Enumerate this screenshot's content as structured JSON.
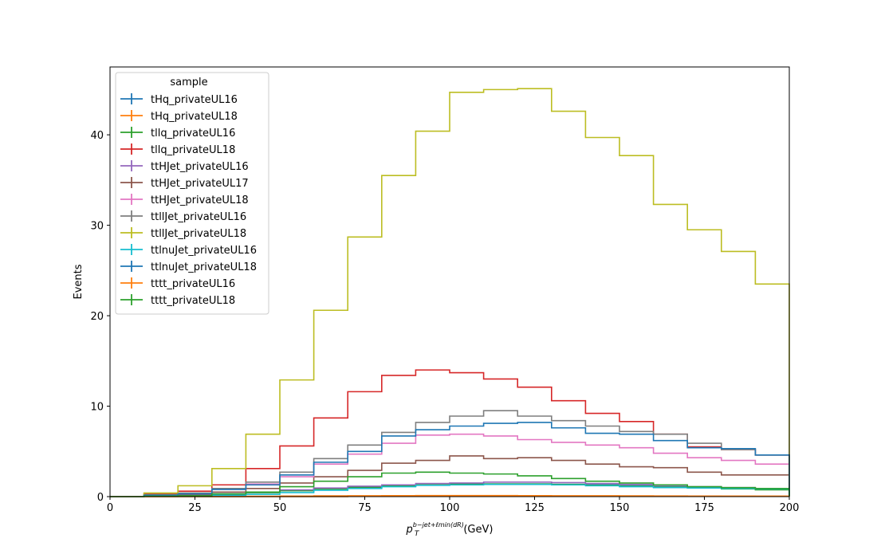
{
  "chart_data": {
    "type": "line",
    "drawstyle": "step",
    "xlabel_main": "p",
    "xlabel_sub": "T",
    "xlabel_sup": "b−jet+ℓmin(dR)",
    "xlabel_unit": "(GeV)",
    "ylabel": "Events",
    "xlim": [
      0,
      200
    ],
    "ylim": [
      0,
      47.5
    ],
    "xticks": [
      0,
      25,
      50,
      75,
      100,
      125,
      150,
      175,
      200
    ],
    "yticks": [
      0,
      10,
      20,
      30,
      40
    ],
    "bin_edges": [
      0,
      10,
      20,
      30,
      40,
      50,
      60,
      70,
      80,
      90,
      100,
      110,
      120,
      130,
      140,
      150,
      160,
      170,
      180,
      190,
      200
    ],
    "legend_title": "sample",
    "legend_position": "upper-left",
    "series": [
      {
        "name": "tHq_privateUL16",
        "color": "#1f77b4",
        "values": [
          0,
          0.05,
          0.1,
          0.25,
          0.45,
          0.65,
          0.85,
          1.0,
          1.15,
          1.3,
          1.35,
          1.4,
          1.4,
          1.35,
          1.3,
          1.2,
          1.1,
          1.0,
          0.9,
          0.8
        ]
      },
      {
        "name": "tHq_privateUL18",
        "color": "#ff7f0e",
        "values": [
          0,
          0,
          0.01,
          0.02,
          0.04,
          0.06,
          0.08,
          0.1,
          0.11,
          0.12,
          0.12,
          0.12,
          0.11,
          0.1,
          0.09,
          0.08,
          0.07,
          0.06,
          0.05,
          0.04
        ]
      },
      {
        "name": "tllq_privateUL16",
        "color": "#2ca02c",
        "values": [
          0,
          0.05,
          0.1,
          0.25,
          0.45,
          0.65,
          0.85,
          1.05,
          1.2,
          1.3,
          1.4,
          1.4,
          1.4,
          1.35,
          1.25,
          1.15,
          1.05,
          0.95,
          0.85,
          0.75
        ]
      },
      {
        "name": "tllq_privateUL18",
        "color": "#d62728",
        "values": [
          0,
          0.3,
          0.6,
          1.3,
          3.1,
          5.6,
          8.7,
          11.6,
          13.4,
          14.0,
          13.7,
          13.0,
          12.1,
          10.6,
          9.2,
          8.3,
          6.9,
          5.5,
          5.2,
          4.6
        ]
      },
      {
        "name": "ttHJet_privateUL16",
        "color": "#9467bd",
        "values": [
          0,
          0.05,
          0.1,
          0.3,
          0.5,
          0.75,
          0.95,
          1.15,
          1.3,
          1.45,
          1.5,
          1.6,
          1.6,
          1.55,
          1.45,
          1.35,
          1.25,
          1.1,
          1.0,
          0.9
        ]
      },
      {
        "name": "ttHJet_privateUL17",
        "color": "#8c564b",
        "values": [
          0,
          0.1,
          0.2,
          0.5,
          0.9,
          1.5,
          2.2,
          2.9,
          3.7,
          4.0,
          4.5,
          4.2,
          4.3,
          4.0,
          3.6,
          3.3,
          3.2,
          2.7,
          2.4,
          2.4
        ]
      },
      {
        "name": "ttHJet_privateUL18",
        "color": "#e377c2",
        "values": [
          0,
          0.15,
          0.3,
          0.8,
          1.4,
          2.2,
          3.6,
          4.7,
          5.9,
          6.8,
          6.9,
          6.7,
          6.3,
          6.0,
          5.7,
          5.4,
          4.8,
          4.3,
          4.0,
          3.6
        ]
      },
      {
        "name": "ttllJet_privateUL16",
        "color": "#7f7f7f",
        "values": [
          0,
          0.2,
          0.4,
          0.9,
          1.6,
          2.7,
          4.2,
          5.7,
          7.1,
          8.2,
          8.9,
          9.5,
          8.9,
          8.4,
          7.8,
          7.2,
          6.9,
          5.9,
          5.2,
          4.6
        ]
      },
      {
        "name": "ttllJet_privateUL18",
        "color": "#bcbd22",
        "values": [
          0,
          0.4,
          1.2,
          3.1,
          6.9,
          12.9,
          20.6,
          28.7,
          35.5,
          40.4,
          44.7,
          45.0,
          45.1,
          42.6,
          39.7,
          37.7,
          32.3,
          29.5,
          27.1,
          23.5
        ]
      },
      {
        "name": "ttlnuJet_privateUL16",
        "color": "#17becf",
        "values": [
          0,
          0.03,
          0.06,
          0.15,
          0.25,
          0.45,
          0.7,
          0.9,
          1.1,
          1.25,
          1.3,
          1.35,
          1.35,
          1.3,
          1.2,
          1.1,
          1.0,
          0.95,
          0.9,
          0.85
        ]
      },
      {
        "name": "ttlnuJet_privateUL18",
        "color": "#1f77b4",
        "values": [
          0,
          0.15,
          0.3,
          0.8,
          1.3,
          2.4,
          3.8,
          5.0,
          6.7,
          7.4,
          7.8,
          8.1,
          8.2,
          7.6,
          7.0,
          6.9,
          6.2,
          5.4,
          5.3,
          4.6
        ]
      },
      {
        "name": "tttt_privateUL16",
        "color": "#ff7f0e",
        "values": [
          0,
          0,
          0,
          0,
          0,
          0,
          0,
          0.05,
          0.05,
          0.05,
          0.05,
          0.05,
          0.05,
          0.05,
          0.05,
          0.05,
          0.05,
          0.05,
          0.05,
          0.05
        ]
      },
      {
        "name": "tttt_privateUL18",
        "color": "#2ca02c",
        "values": [
          0,
          0.05,
          0.1,
          0.3,
          0.5,
          1.1,
          1.7,
          2.2,
          2.6,
          2.7,
          2.6,
          2.5,
          2.3,
          2.0,
          1.7,
          1.5,
          1.3,
          1.1,
          1.0,
          0.9
        ]
      }
    ]
  }
}
